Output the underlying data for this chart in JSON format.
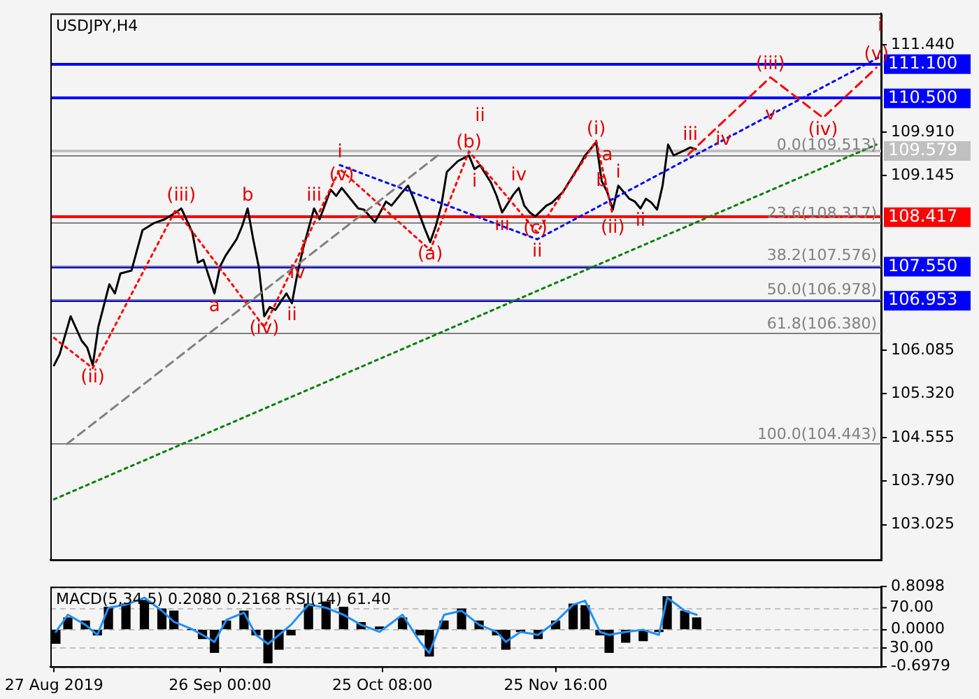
{
  "chart_data": [
    {
      "type": "line",
      "title": "USDJPY,H4",
      "tick_labels": "y",
      "xlim": [
        "2019-08-26T08:00",
        "2020-01-23T12:00"
      ],
      "ylim": [
        102.41,
        111.99
      ],
      "yticks": [
        {
          "value": 111.44,
          "label": "111.440"
        },
        {
          "value": 109.91,
          "label": "109.910"
        },
        {
          "value": 109.145,
          "label": "109.145"
        },
        {
          "value": 106.085,
          "label": "106.085"
        },
        {
          "value": 105.32,
          "label": "105.320"
        },
        {
          "value": 104.555,
          "label": "104.555"
        },
        {
          "value": 103.79,
          "label": "103.790"
        },
        {
          "value": 103.025,
          "label": "103.025"
        }
      ],
      "series": [
        {
          "color": "#008000",
          "line_style": "dotted",
          "x": [
            "2019-08-27",
            "2020-01-22T16:00"
          ],
          "values": [
            103.47,
            109.69
          ]
        },
        {
          "color": "#808080",
          "line_style": "dashed",
          "x": [
            "2019-08-29T08:00",
            "2019-11-04T12:00"
          ],
          "values": [
            104.44,
            109.51
          ]
        },
        {
          "color": "#0000ff",
          "line_style": "dotted",
          "x": [
            "2019-10-17T16:00",
            "2019-11-22T08:00",
            "2019-12-26",
            "2020-01-03T12:00",
            "2020-01-23T08:00"
          ],
          "values": [
            109.33,
            108.03,
            109.77,
            110.21,
            111.23
          ]
        },
        {
          "color": "#ff0000",
          "line_style": "dotted",
          "x": [
            "2019-08-27",
            "2019-09-03",
            "2019-09-18",
            "2019-10-04",
            "2019-10-17T16:00",
            "2019-11-03",
            "2019-11-10",
            "2019-11-22T08:00",
            "2019-12-03",
            "2019-12-06"
          ],
          "values": [
            106.3,
            105.77,
            108.55,
            106.49,
            109.26,
            107.84,
            109.57,
            108.15,
            109.76,
            108.45
          ]
        },
        {
          "color": "#ff0000",
          "line_style": "dashed",
          "x": [
            "2019-12-19T16:00",
            "2020-01-03T12:00",
            "2020-01-13",
            "2020-01-22T16:00"
          ],
          "values": [
            109.52,
            110.87,
            110.16,
            111.04
          ]
        },
        {
          "color": "#000000",
          "x": [
            "2019-08-27",
            "2019-08-28",
            "2019-08-30",
            "2019-09-01",
            "2019-09-02",
            "2019-09-03",
            "2019-09-04",
            "2019-09-06",
            "2019-09-07",
            "2019-09-08",
            "2019-09-10",
            "2019-09-11",
            "2019-09-12",
            "2019-09-14",
            "2019-09-16",
            "2019-09-18",
            "2019-09-19",
            "2019-09-21",
            "2019-09-22",
            "2019-09-23",
            "2019-09-25",
            "2019-09-26",
            "2019-09-27",
            "2019-09-29",
            "2019-09-30",
            "2019-10-01",
            "2019-10-02",
            "2019-10-03",
            "2019-10-04",
            "2019-10-05",
            "2019-10-06",
            "2019-10-08",
            "2019-10-09",
            "2019-10-10",
            "2019-10-11",
            "2019-10-13",
            "2019-10-14",
            "2019-10-16",
            "2019-10-17",
            "2019-10-18",
            "2019-10-20",
            "2019-10-21",
            "2019-10-22",
            "2019-10-24",
            "2019-10-26",
            "2019-10-27",
            "2019-10-29",
            "2019-10-30",
            "2019-10-31",
            "2019-11-02",
            "2019-11-03",
            "2019-11-04",
            "2019-11-05",
            "2019-11-06",
            "2019-11-08",
            "2019-11-10",
            "2019-11-11",
            "2019-11-12",
            "2019-11-14",
            "2019-11-15",
            "2019-11-16",
            "2019-11-18",
            "2019-11-19",
            "2019-11-20",
            "2019-11-21",
            "2019-11-22",
            "2019-11-24",
            "2019-11-25",
            "2019-11-27",
            "2019-11-28",
            "2019-11-30",
            "2019-12-01",
            "2019-12-03",
            "2019-12-04",
            "2019-12-05",
            "2019-12-06",
            "2019-12-07",
            "2019-12-09",
            "2019-12-10",
            "2019-12-11",
            "2019-12-12",
            "2019-12-13",
            "2019-12-14",
            "2019-12-15",
            "2019-12-16",
            "2019-12-17",
            "2019-12-19",
            "2019-12-20",
            "2019-12-21"
          ],
          "values": [
            105.82,
            106.01,
            106.68,
            106.25,
            106.13,
            105.82,
            106.49,
            107.24,
            107.08,
            107.43,
            107.48,
            107.84,
            108.19,
            108.31,
            108.38,
            108.5,
            108.57,
            108.15,
            107.62,
            107.67,
            107.08,
            107.55,
            107.74,
            108.03,
            108.26,
            108.57,
            108.03,
            107.55,
            106.68,
            106.84,
            106.79,
            107.08,
            106.91,
            107.43,
            107.86,
            108.57,
            108.38,
            108.9,
            108.79,
            108.93,
            108.69,
            108.57,
            108.55,
            108.33,
            108.69,
            108.62,
            108.86,
            108.97,
            108.74,
            108.22,
            107.98,
            108.26,
            108.62,
            109.21,
            109.4,
            109.5,
            109.26,
            109.33,
            109.02,
            108.79,
            108.5,
            108.81,
            108.93,
            108.62,
            108.5,
            108.43,
            108.62,
            108.67,
            108.86,
            109.02,
            109.33,
            109.5,
            109.73,
            109.05,
            108.86,
            108.55,
            108.97,
            108.74,
            108.69,
            108.57,
            108.74,
            108.67,
            108.55,
            108.97,
            109.69,
            109.5,
            109.59,
            109.64,
            109.61
          ]
        }
      ],
      "ref_lines": [
        {
          "axis": "y",
          "value": 111.1,
          "label": "111.100",
          "color": "#0000ff",
          "line_style": "solid"
        },
        {
          "axis": "y",
          "value": 110.5,
          "label": "110.500",
          "color": "#0000ff",
          "line_style": "solid"
        },
        {
          "axis": "y",
          "value": 109.579,
          "label": "109.579",
          "color": "#c0c0c0",
          "line_style": "solid"
        },
        {
          "axis": "y",
          "value": 108.417,
          "label": "108.417",
          "color": "#ff0000",
          "line_style": "solid"
        },
        {
          "axis": "y",
          "value": 107.55,
          "label": "107.550",
          "color": "#0000ff",
          "line_style": "solid"
        },
        {
          "axis": "y",
          "value": 106.953,
          "label": "106.953",
          "color": "#0000ff",
          "line_style": "solid"
        },
        {
          "axis": "y",
          "value": 109.513,
          "label": "0.0(109.513)",
          "color": "#808080"
        },
        {
          "axis": "y",
          "value": 108.317,
          "label": "23.6(108.317)",
          "color": "#808080"
        },
        {
          "axis": "y",
          "value": 107.576,
          "label": "38.2(107.576)",
          "color": "#808080"
        },
        {
          "axis": "y",
          "value": 106.978,
          "label": "50.0(106.978)",
          "color": "#808080"
        },
        {
          "axis": "y",
          "value": 106.38,
          "label": "61.8(106.380)",
          "color": "#808080"
        },
        {
          "axis": "y",
          "value": 104.443,
          "label": "100.0(104.443)",
          "color": "#808080"
        }
      ],
      "annotations": [
        {
          "text": "(ii)",
          "x": "2019-09-03",
          "y": 105.82
        },
        {
          "text": "(iii)",
          "x": "2019-09-19",
          "y": 108.57
        },
        {
          "text": "(iv)",
          "x": "2019-10-04",
          "y": 106.68
        },
        {
          "text": "(v)",
          "x": "2019-10-18",
          "y": 108.93
        },
        {
          "text": "i",
          "x": "2019-10-17T16:00",
          "y": 109.33
        },
        {
          "text": "a",
          "x": "2019-09-25",
          "y": 107.08
        },
        {
          "text": "b",
          "x": "2019-10-01",
          "y": 108.57
        },
        {
          "text": "i",
          "x": "2019-10-11",
          "y": 107.86
        },
        {
          "text": "ii",
          "x": "2019-10-09",
          "y": 106.91
        },
        {
          "text": "iii",
          "x": "2019-10-13",
          "y": 108.57
        },
        {
          "text": "iv",
          "x": "2019-10-10",
          "y": 107.43
        },
        {
          "text": "(a)",
          "x": "2019-11-03",
          "y": 107.98
        },
        {
          "text": "(b)",
          "x": "2019-11-10",
          "y": 109.5
        },
        {
          "text": "ii",
          "x": "2019-11-12",
          "y": 109.33
        },
        {
          "text": "i",
          "x": "2019-11-11",
          "y": 109.26
        },
        {
          "text": "iii",
          "x": "2019-11-16",
          "y": 108.5
        },
        {
          "text": "iv",
          "x": "2019-11-19",
          "y": 108.93
        },
        {
          "text": "(c)",
          "x": "2019-11-22",
          "y": 108.43
        },
        {
          "text": "ii",
          "x": "2019-11-22T08:00",
          "y": 108.03
        },
        {
          "text": "(i)",
          "x": "2019-12-03",
          "y": 109.73
        },
        {
          "text": "b",
          "x": "2019-12-04",
          "y": 109.05
        },
        {
          "text": "a",
          "x": "2019-12-05",
          "y": 108.86
        },
        {
          "text": "i",
          "x": "2019-12-07",
          "y": 108.97
        },
        {
          "text": "(ii)",
          "x": "2019-12-06",
          "y": 108.45
        },
        {
          "text": "ii",
          "x": "2019-12-11",
          "y": 108.57
        },
        {
          "text": "iii",
          "x": "2019-12-20",
          "y": 109.64
        },
        {
          "text": "iv",
          "x": "2019-12-26",
          "y": 109.77
        },
        {
          "text": "(iii)",
          "x": "2020-01-03T12:00",
          "y": 110.87
        },
        {
          "text": "v",
          "x": "2020-01-03T12:00",
          "y": 110.21
        },
        {
          "text": "(iv)",
          "x": "2020-01-13",
          "y": 110.16
        },
        {
          "text": "(v)",
          "x": "2020-01-22T16:00",
          "y": 111.04
        },
        {
          "text": "i",
          "x": "2020-01-23T08:00",
          "y": 111.23
        }
      ]
    },
    {
      "type": "bar",
      "title": "MACD(5,34,5) 0.2080 0.2168 RSI(14) 61.40",
      "grid": "y",
      "xlim": [
        "2019-08-26T08:00",
        "2020-01-23T12:00"
      ],
      "xticks": [
        {
          "value": "2019-08-27",
          "label": "27 Aug 2019"
        },
        {
          "value": "2019-09-26T00:00",
          "label": "26 Sep 00:00"
        },
        {
          "value": "2019-10-25T08:00",
          "label": "25 Oct 08:00"
        },
        {
          "value": "2019-11-25T16:00",
          "label": "25 Nov 16:00"
        }
      ],
      "ylim": [
        -0.6979,
        0.8098
      ],
      "yticks": [
        {
          "value": 0.8098,
          "label": "0.8098"
        },
        {
          "value": 0,
          "label": "0.0000"
        },
        {
          "value": -0.6979,
          "label": "-0.6979"
        }
      ],
      "y2lim": [
        11.5,
        91
      ],
      "y2ticks": [
        {
          "value": 70,
          "label": "70.00"
        },
        {
          "value": 30,
          "label": "30.00"
        }
      ],
      "x": [
        "2019-08-27T08:00",
        "2019-08-29T12:00",
        "2019-09-01T16:00",
        "2019-09-03T20:00",
        "2019-09-05T20:00",
        "2019-09-09T00:00",
        "2019-09-12T08:00",
        "2019-09-15T12:00",
        "2019-09-17T16:00",
        "2019-09-20T20:00",
        "2019-09-22T20:00",
        "2019-09-25T00:00",
        "2019-09-27T04:00",
        "2019-09-30T08:00",
        "2019-10-02T12:00",
        "2019-10-04T16:00",
        "2019-10-06T16:00",
        "2019-10-08T20:00",
        "2019-10-12T00:00",
        "2019-10-15T04:00",
        "2019-10-18T08:00",
        "2019-10-21T12:00",
        "2019-10-24T20:00",
        "2019-10-29T00:00",
        "2019-11-01T04:00",
        "2019-11-02T20:00",
        "2019-11-05T12:00",
        "2019-11-08T16:00",
        "2019-11-11T20:00",
        "2019-11-15T00:00",
        "2019-11-16T16:00",
        "2019-11-19T08:00",
        "2019-11-22T12:00",
        "2019-11-25T16:00",
        "2019-11-28T20:00",
        "2019-12-01T00:00",
        "2019-12-03T16:00",
        "2019-12-05T08:00",
        "2019-12-08T08:00",
        "2019-12-11T12:00",
        "2019-12-14T08:00",
        "2019-12-15T20:00",
        "2019-12-19T00:00",
        "2019-12-21T04:00"
      ],
      "series": [
        {
          "color": "#000000",
          "values": [
            -0.26,
            0.22,
            0.16,
            -0.1,
            0.42,
            0.48,
            0.55,
            0.39,
            0.35,
            0,
            -0.17,
            -0.43,
            0.16,
            0.35,
            -0.1,
            -0.63,
            -0.37,
            -0.1,
            0.48,
            0.52,
            0.42,
            0.13,
            0.05,
            0.22,
            -0.1,
            -0.5,
            0.16,
            0.39,
            0.16,
            -0.1,
            -0.37,
            -0.04,
            -0.17,
            0.16,
            0.48,
            0.45,
            -0.1,
            -0.43,
            -0.24,
            -0.21,
            -0.04,
            0.62,
            0.35,
            0.22
          ]
        },
        {
          "type": "line",
          "axis": "y2",
          "color": "#1e90ff",
          "values": [
            46,
            63,
            53,
            43,
            70,
            73,
            80,
            67,
            56,
            49,
            43,
            36,
            58,
            65,
            43,
            34,
            43,
            53,
            73,
            70,
            63,
            53,
            46,
            63,
            36,
            25,
            63,
            67,
            53,
            46,
            36,
            46,
            43,
            56,
            73,
            77,
            46,
            43,
            46,
            48,
            43,
            80,
            67,
            63
          ]
        }
      ]
    }
  ]
}
